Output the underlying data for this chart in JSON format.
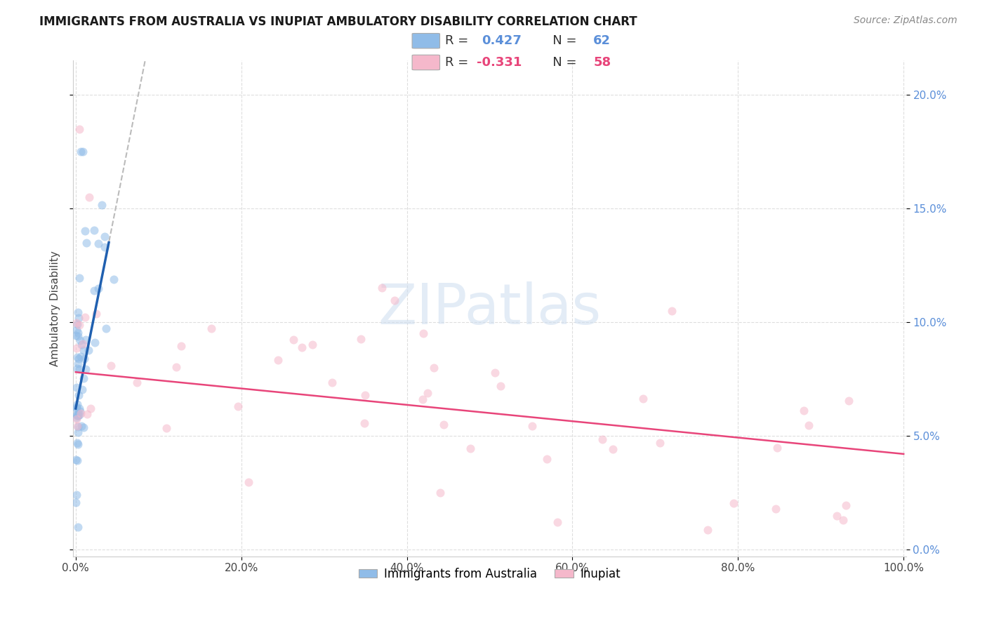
{
  "title": "IMMIGRANTS FROM AUSTRALIA VS INUPIAT AMBULATORY DISABILITY CORRELATION CHART",
  "source": "Source: ZipAtlas.com",
  "xlim": [
    -0.003,
    1.003
  ],
  "ylim": [
    -0.003,
    0.215
  ],
  "ylabel": "Ambulatory Disability",
  "legend_label1": "Immigrants from Australia",
  "legend_label2": "Inupiat",
  "r1": 0.427,
  "n1": 62,
  "r2": -0.331,
  "n2": 58,
  "color1": "#90bce8",
  "color2": "#f5b8cb",
  "line_color1": "#2060b0",
  "line_color2": "#e8457a",
  "trendline_ext_color": "#bbbbbb",
  "scatter_alpha": 0.55,
  "scatter_size": 75,
  "ytick_vals": [
    0.0,
    0.05,
    0.1,
    0.15,
    0.2
  ],
  "xtick_vals": [
    0.0,
    0.2,
    0.4,
    0.6,
    0.8,
    1.0
  ],
  "axis_tick_color": "#5b8fd9",
  "watermark_color": "#ccddf0",
  "watermark_alpha": 0.55,
  "grid_color": "#dedede",
  "spine_color": "#cccccc",
  "legend_box_color": "#eeeeee",
  "title_fontsize": 12,
  "source_fontsize": 10,
  "tick_fontsize": 11,
  "legend_fontsize": 13,
  "ylabel_fontsize": 11,
  "aus_trendline_x0": 0.0,
  "aus_trendline_x1": 0.04,
  "aus_trendline_y0": 0.062,
  "aus_trendline_y1": 0.135,
  "aus_trendline_ext_x1": 0.22,
  "inup_trendline_x0": 0.0,
  "inup_trendline_x1": 1.0,
  "inup_trendline_y0": 0.078,
  "inup_trendline_y1": 0.042
}
